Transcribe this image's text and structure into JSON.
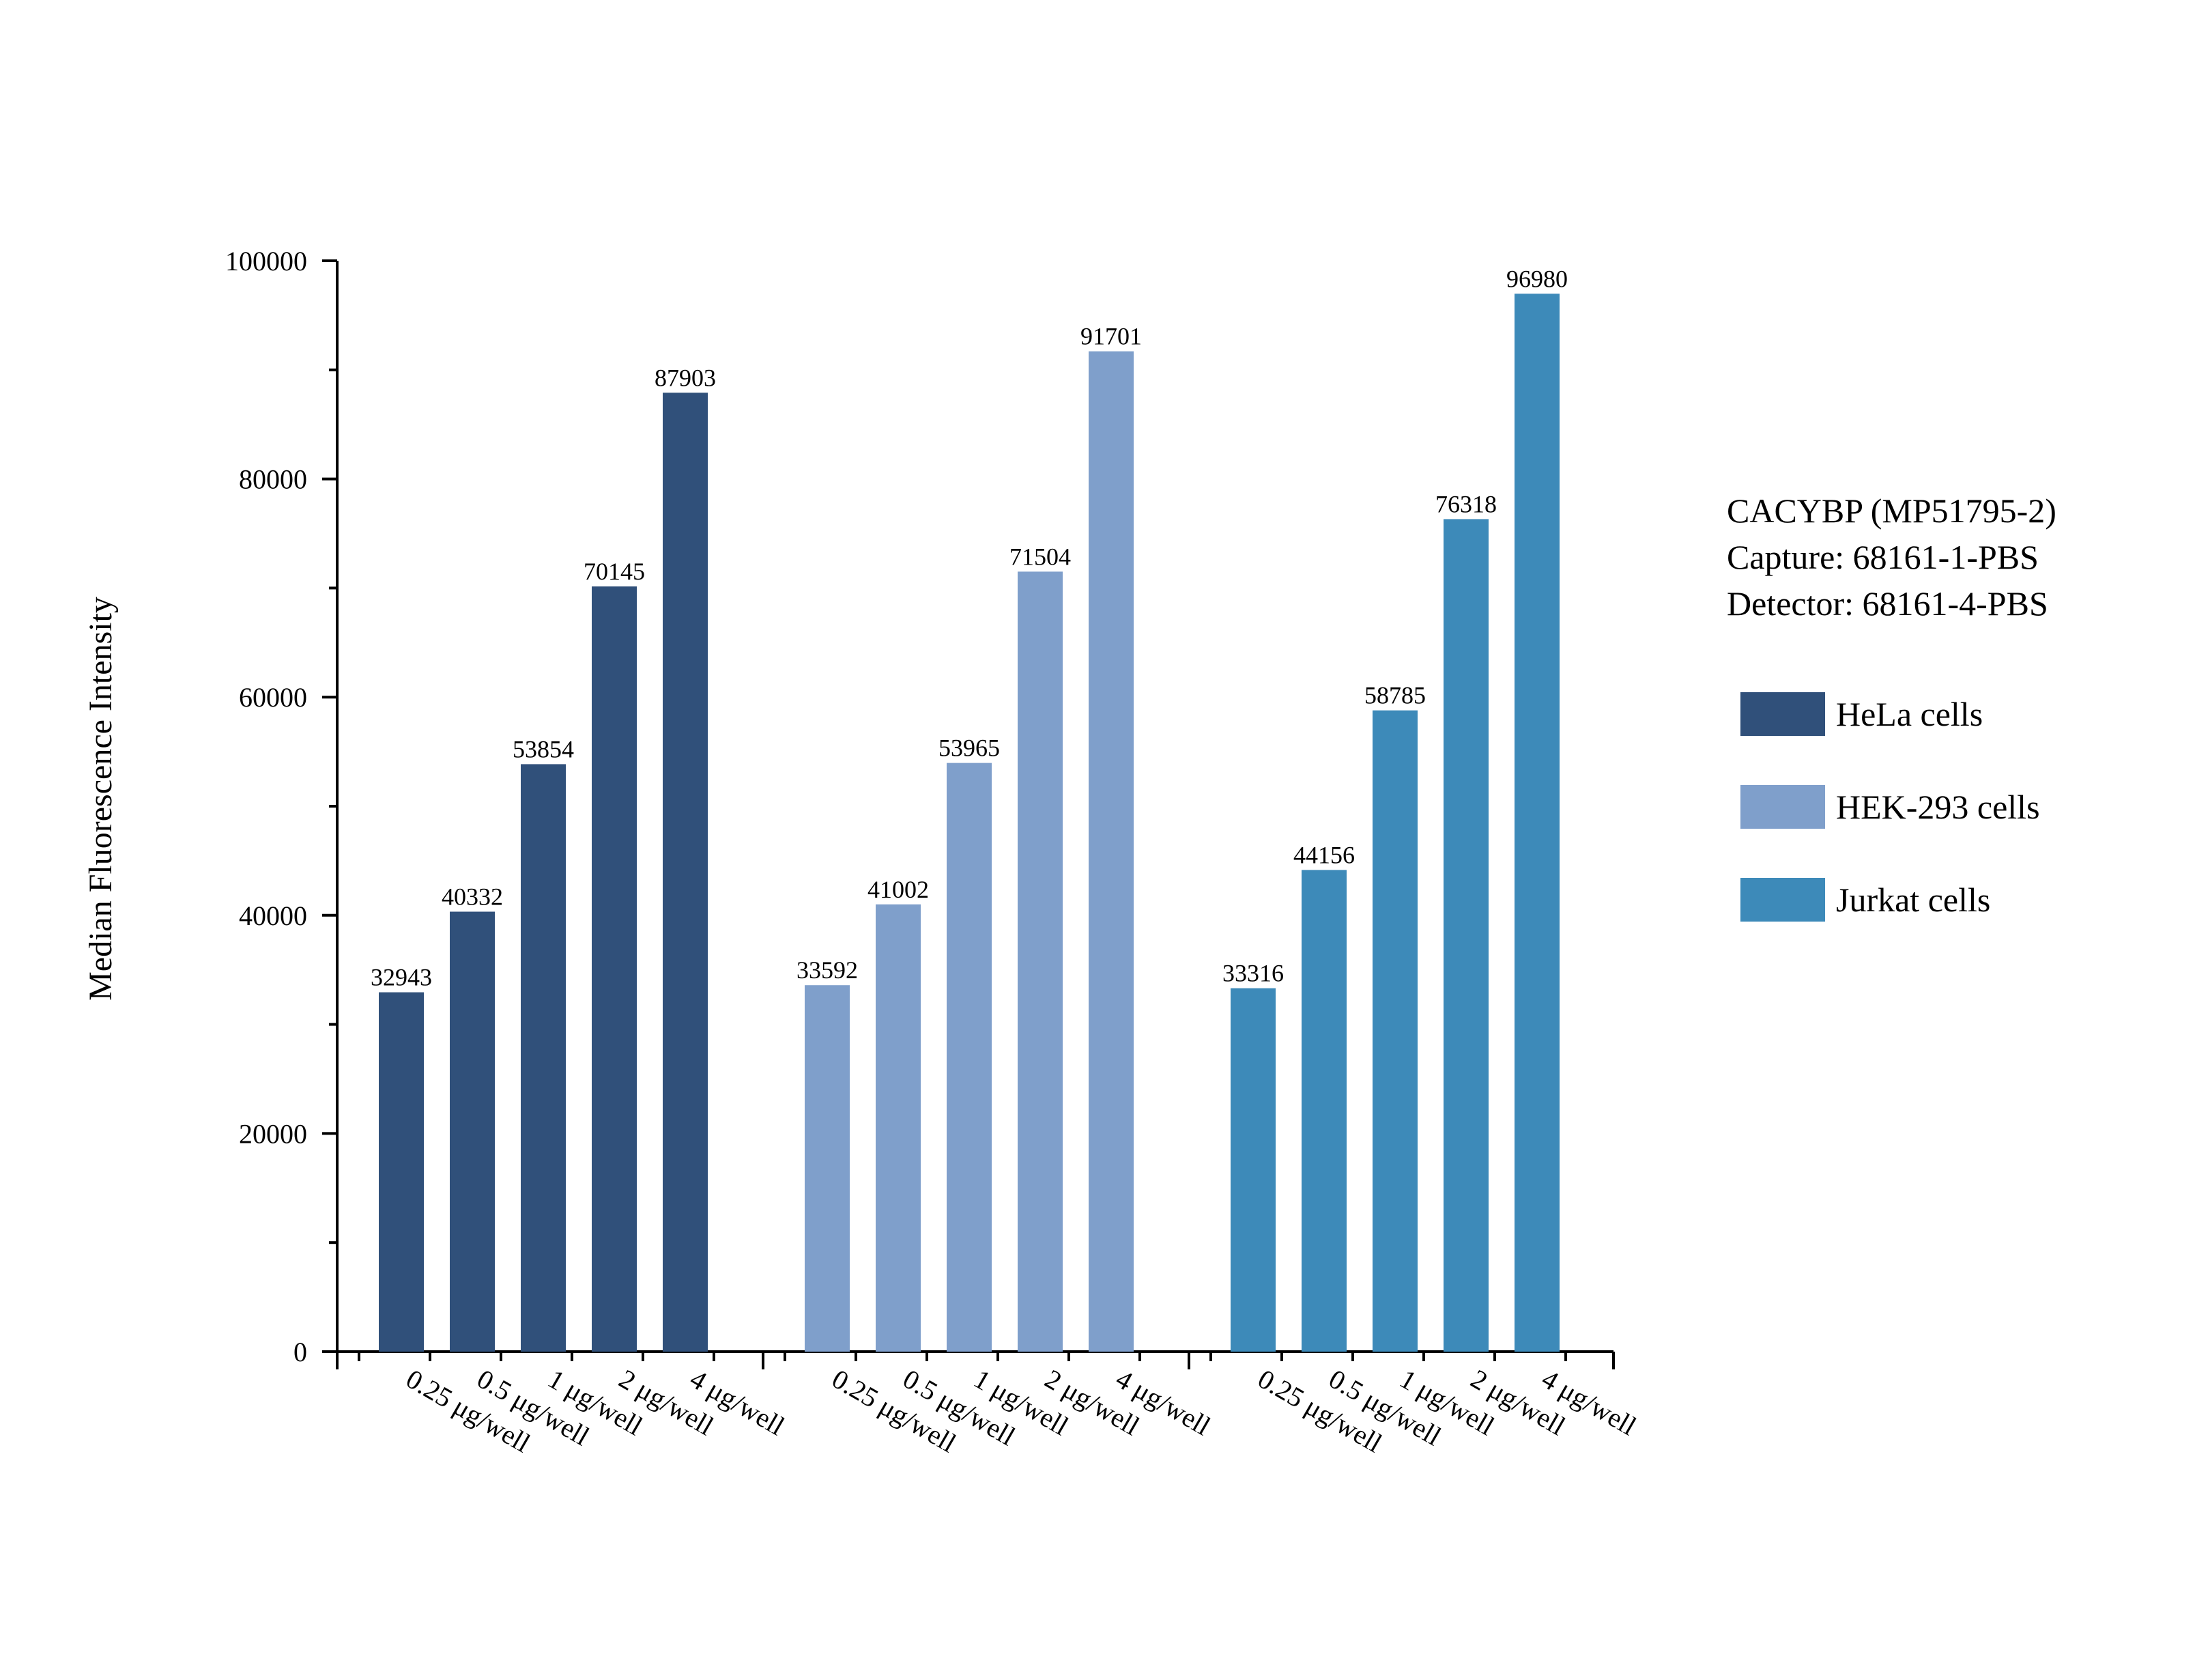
{
  "chart_data": {
    "type": "bar",
    "title": "",
    "ylabel": "Median Fluorescence Intensity",
    "xlabel": "",
    "ylim": [
      0,
      100000
    ],
    "yticks": [
      0,
      20000,
      40000,
      60000,
      80000,
      100000
    ],
    "yticks_minor_step": 10000,
    "grid": false,
    "legend_position": "right",
    "categories": [
      "0.25 μg/well",
      "0.5 μg/well",
      "1 μg/well",
      "2 μg/well",
      "4 μg/well"
    ],
    "series": [
      {
        "name": "HeLa cells",
        "color": "#30507a",
        "values": [
          32943,
          40332,
          53854,
          70145,
          87903
        ]
      },
      {
        "name": "HEK-293 cells",
        "color": "#7f9fcb",
        "values": [
          33592,
          41002,
          53965,
          71504,
          91701
        ]
      },
      {
        "name": "Jurkat cells",
        "color": "#3d8ab9",
        "values": [
          33316,
          44156,
          58785,
          76318,
          96980
        ]
      }
    ]
  },
  "info": {
    "line1": "CACYBP (MP51795-2)",
    "line2": "Capture: 68161-1-PBS",
    "line3": "Detector: 68161-4-PBS"
  }
}
